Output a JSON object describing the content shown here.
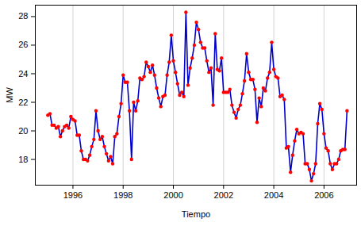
{
  "chart_data": {
    "type": "line",
    "x_label": "Tiempo",
    "y_label": "MW",
    "x": [
      1995.0,
      1995.083,
      1995.167,
      1995.25,
      1995.333,
      1995.417,
      1995.5,
      1995.583,
      1995.667,
      1995.75,
      1995.833,
      1995.917,
      1996.0,
      1996.083,
      1996.167,
      1996.25,
      1996.333,
      1996.417,
      1996.5,
      1996.583,
      1996.667,
      1996.75,
      1996.833,
      1996.917,
      1997.0,
      1997.083,
      1997.167,
      1997.25,
      1997.333,
      1997.417,
      1997.5,
      1997.583,
      1997.667,
      1997.75,
      1997.833,
      1997.917,
      1998.0,
      1998.083,
      1998.167,
      1998.25,
      1998.333,
      1998.417,
      1998.5,
      1998.583,
      1998.667,
      1998.75,
      1998.833,
      1998.917,
      1999.0,
      1999.083,
      1999.167,
      1999.25,
      1999.333,
      1999.417,
      1999.5,
      1999.583,
      1999.667,
      1999.75,
      1999.833,
      1999.917,
      2000.0,
      2000.083,
      2000.167,
      2000.25,
      2000.333,
      2000.417,
      2000.5,
      2000.583,
      2000.667,
      2000.75,
      2000.833,
      2000.917,
      2001.0,
      2001.083,
      2001.167,
      2001.25,
      2001.333,
      2001.417,
      2001.5,
      2001.583,
      2001.667,
      2001.75,
      2001.833,
      2001.917,
      2002.0,
      2002.083,
      2002.167,
      2002.25,
      2002.333,
      2002.417,
      2002.5,
      2002.583,
      2002.667,
      2002.75,
      2002.833,
      2002.917,
      2003.0,
      2003.083,
      2003.167,
      2003.25,
      2003.333,
      2003.417,
      2003.5,
      2003.583,
      2003.667,
      2003.75,
      2003.833,
      2003.917,
      2004.0,
      2004.083,
      2004.167,
      2004.25,
      2004.333,
      2004.417,
      2004.5,
      2004.583,
      2004.667,
      2004.75,
      2004.833,
      2004.917,
      2005.0,
      2005.083,
      2005.167,
      2005.25,
      2005.333,
      2005.417,
      2005.5,
      2005.583,
      2005.667,
      2005.75,
      2005.833,
      2005.917,
      2006.0,
      2006.083,
      2006.167,
      2006.25,
      2006.333,
      2006.417,
      2006.5,
      2006.583,
      2006.667,
      2006.75,
      2006.833,
      2006.917
    ],
    "values": [
      21.1,
      21.2,
      20.4,
      20.4,
      20.2,
      20.3,
      19.6,
      20.0,
      20.3,
      20.4,
      20.2,
      21.0,
      20.8,
      20.7,
      19.7,
      19.7,
      18.6,
      18.0,
      18.0,
      17.9,
      18.3,
      18.9,
      19.4,
      21.4,
      20.0,
      19.4,
      19.6,
      18.9,
      18.4,
      17.9,
      18.2,
      17.7,
      19.6,
      19.8,
      21.0,
      21.9,
      23.9,
      23.4,
      23.4,
      21.4,
      18.0,
      22.0,
      21.4,
      22.1,
      23.7,
      23.6,
      23.8,
      24.8,
      24.5,
      24.1,
      24.6,
      23.9,
      23.0,
      22.3,
      21.7,
      22.4,
      22.5,
      23.9,
      24.8,
      26.7,
      24.9,
      24.1,
      23.3,
      22.5,
      22.7,
      22.4,
      28.3,
      23.2,
      24.4,
      25.1,
      26.0,
      27.6,
      27.1,
      26.2,
      25.8,
      25.8,
      24.9,
      24.1,
      24.4,
      21.8,
      26.8,
      24.3,
      24.2,
      25.1,
      22.7,
      22.7,
      22.7,
      22.9,
      21.8,
      21.3,
      20.9,
      21.5,
      21.8,
      22.6,
      23.5,
      25.4,
      24.1,
      23.6,
      23.6,
      22.9,
      20.6,
      22.3,
      21.7,
      23.0,
      22.8,
      23.7,
      24.1,
      26.2,
      24.3,
      23.8,
      23.7,
      22.4,
      22.5,
      22.2,
      18.8,
      18.9,
      17.1,
      18.3,
      19.3,
      20.1,
      19.8,
      19.9,
      19.8,
      17.7,
      17.7,
      17.3,
      16.5,
      17.0,
      17.7,
      20.5,
      21.9,
      21.5,
      19.8,
      18.8,
      18.6,
      17.7,
      17.3,
      17.7,
      17.7,
      18.0,
      18.6,
      18.7,
      18.7,
      21.4
    ],
    "color": "#0000cc",
    "marker": "circle",
    "xlim": [
      1994.5,
      2007.3
    ],
    "xticks": [
      1996,
      1998,
      2000,
      2002,
      2004,
      2006
    ],
    "ylim": [
      16.2,
      28.8
    ],
    "yticks": [
      18,
      20,
      22,
      24,
      26,
      28
    ],
    "grid": "x"
  }
}
